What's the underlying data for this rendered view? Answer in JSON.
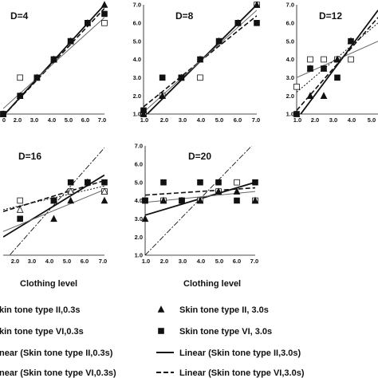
{
  "chart_data": [
    {
      "type": "scatter",
      "title": "D=4",
      "x_ticks": [
        "0",
        "2.0",
        "3.0",
        "4.0",
        "5.0",
        "6.0",
        "7.0"
      ],
      "y_ticks": [],
      "xlim": [
        1,
        7
      ],
      "ylim": [
        1,
        7
      ],
      "series": [
        {
          "key": "ii03",
          "x": [
            1,
            2,
            3,
            4,
            5,
            6,
            7
          ],
          "y": [
            1,
            3,
            3,
            4,
            5,
            6,
            6
          ]
        },
        {
          "key": "ii30",
          "x": [
            1,
            2,
            3,
            4,
            5,
            6,
            7
          ],
          "y": [
            1,
            2,
            3,
            4,
            5,
            6,
            7
          ]
        },
        {
          "key": "vi30",
          "x": [
            1,
            2,
            3,
            4,
            5,
            6,
            7
          ],
          "y": [
            1,
            2,
            3,
            4,
            5,
            6,
            6.5
          ]
        }
      ],
      "fits": [
        {
          "key": "lin_ii30",
          "y0": 0.9,
          "y1": 7.0
        },
        {
          "key": "lin_vi30",
          "y0": 0.9,
          "y1": 6.8
        },
        {
          "key": "lin_ii03",
          "y0": 1.3,
          "y1": 6.3
        }
      ]
    },
    {
      "type": "scatter",
      "title": "D=8",
      "x_ticks": [
        "1.0",
        "2.0",
        "3.0",
        "4.0",
        "5.0",
        "6.0",
        "7.0"
      ],
      "y_ticks": [
        "1.0",
        "2.0",
        "3.0",
        "4.0",
        "5.0",
        "6.0",
        "7.0"
      ],
      "xlim": [
        1,
        7
      ],
      "ylim": [
        1,
        7
      ],
      "series": [
        {
          "key": "ii03",
          "x": [
            1,
            2,
            3,
            4,
            5,
            6,
            7
          ],
          "y": [
            1,
            2,
            3,
            3,
            5,
            6,
            7
          ]
        },
        {
          "key": "ii30",
          "x": [
            1,
            2,
            3,
            4,
            5,
            6,
            7
          ],
          "y": [
            1,
            2,
            3,
            4,
            5,
            6,
            7
          ]
        },
        {
          "key": "vi30",
          "x": [
            1,
            2,
            3,
            4,
            5,
            6,
            7
          ],
          "y": [
            1.2,
            3,
            3,
            4,
            5,
            6,
            6
          ]
        }
      ],
      "fits": [
        {
          "key": "lin_ii30",
          "y0": 0.8,
          "y1": 7.0
        },
        {
          "key": "lin_vi30",
          "y0": 1.4,
          "y1": 6.4
        },
        {
          "key": "lin_ii03",
          "y0": 1.1,
          "y1": 6.7
        }
      ]
    },
    {
      "type": "scatter",
      "title": "D=12",
      "x_ticks": [
        "1.0",
        "2.0",
        "3.0",
        "4.0",
        "5.0"
      ],
      "y_ticks": [
        "1.0",
        "2.0",
        "3.0",
        "4.0",
        "5.0",
        "6.0",
        "7.0"
      ],
      "xlim": [
        1,
        7
      ],
      "ylim": [
        1,
        7
      ],
      "series": [
        {
          "key": "ii03",
          "x": [
            1,
            2,
            3,
            4,
            5
          ],
          "y": [
            2.5,
            4,
            4,
            4,
            4
          ]
        },
        {
          "key": "vi03",
          "x": [
            2,
            3,
            4,
            5
          ],
          "y": [
            3.5,
            3.5,
            4,
            5
          ]
        },
        {
          "key": "ii30",
          "x": [
            1,
            2,
            3,
            4,
            5
          ],
          "y": [
            1,
            2,
            2,
            4,
            5
          ]
        },
        {
          "key": "vi30",
          "x": [
            1,
            2,
            3,
            4,
            5
          ],
          "y": [
            1,
            3.5,
            3.5,
            3,
            5
          ]
        }
      ],
      "fits": [
        {
          "key": "lin_ii03",
          "y0": 3.0,
          "y1": 5.0
        },
        {
          "key": "lin_vi03",
          "y0": 2.2,
          "y1": 6.0
        },
        {
          "key": "lin_ii30",
          "y0": 0.7,
          "y1": 6.7
        },
        {
          "key": "lin_vi30",
          "y0": 1.2,
          "y1": 6.3
        }
      ]
    },
    {
      "type": "scatter",
      "title": "D=16",
      "x_ticks": [
        "2.0",
        "3.0",
        "4.0",
        "5.0",
        "6.0",
        "7.0"
      ],
      "y_ticks": [],
      "xlim": [
        1,
        7
      ],
      "ylim": [
        1,
        7
      ],
      "series": [
        {
          "key": "ii03",
          "x": [
            2,
            4,
            5,
            6,
            7
          ],
          "y": [
            4,
            4,
            4.5,
            5,
            4.5
          ]
        },
        {
          "key": "vi03",
          "x": [
            2,
            4,
            5,
            6,
            7
          ],
          "y": [
            3.5,
            4,
            4.5,
            5,
            4.5
          ]
        },
        {
          "key": "ii30",
          "x": [
            4,
            5,
            6,
            7
          ],
          "y": [
            3,
            4,
            5,
            4
          ]
        },
        {
          "key": "vi30",
          "x": [
            2,
            4,
            5,
            6,
            7
          ],
          "y": [
            3,
            4,
            5,
            5,
            5
          ]
        }
      ],
      "fits": [
        {
          "key": "lin_ref",
          "y0": 0.6,
          "y1": 6.9
        },
        {
          "key": "lin_ii30",
          "y0": 2.0,
          "y1": 5.4
        },
        {
          "key": "lin_vi30",
          "y0": 3.4,
          "y1": 5.1
        },
        {
          "key": "lin_ii03",
          "y0": 2.3,
          "y1": 4.6
        },
        {
          "key": "lin_vi03",
          "y0": 3.5,
          "y1": 4.8
        }
      ]
    },
    {
      "type": "scatter",
      "title": "D=20",
      "x_ticks": [
        "1.0",
        "2.0",
        "3.0",
        "4.0",
        "5.0",
        "6.0",
        "7.0"
      ],
      "y_ticks": [
        "1.0",
        "2.0",
        "3.0",
        "4.0",
        "5.0",
        "6.0",
        "7.0"
      ],
      "xlim": [
        1,
        7
      ],
      "ylim": [
        1,
        7
      ],
      "series": [
        {
          "key": "ii03",
          "x": [
            1,
            2,
            3,
            4,
            5,
            6,
            7
          ],
          "y": [
            4,
            4,
            4,
            4,
            4.5,
            5,
            4
          ]
        },
        {
          "key": "ii30",
          "x": [
            1,
            2,
            3,
            4,
            5,
            6,
            7
          ],
          "y": [
            3,
            4,
            4,
            4,
            4.5,
            4.5,
            4
          ]
        },
        {
          "key": "vi30",
          "x": [
            1,
            2,
            3,
            4,
            5,
            6,
            7
          ],
          "y": [
            4,
            5,
            4,
            5,
            5,
            4,
            5
          ]
        }
      ],
      "fits": [
        {
          "key": "lin_ref",
          "y0": 1.0,
          "y1": 7.2
        },
        {
          "key": "lin_ii30",
          "y0": 3.2,
          "y1": 5.0
        },
        {
          "key": "lin_vi30",
          "y0": 4.3,
          "y1": 4.7
        },
        {
          "key": "lin_ii03",
          "y0": 3.9,
          "y1": 4.5
        }
      ]
    }
  ],
  "axis_labels": [
    "Clothing level",
    "Clothing level"
  ],
  "legend": [
    {
      "key": "ii03",
      "symbol": "open-square",
      "label": "kin tone type II,0.3s"
    },
    {
      "key": "ii30",
      "symbol": "filled-triangle",
      "label": "Skin tone type II, 3.0s"
    },
    {
      "key": "vi03",
      "symbol": "open-triangle",
      "label": "kin tone type VI,0.3s"
    },
    {
      "key": "vi30",
      "symbol": "filled-square",
      "label": "Skin tone type VI, 3.0s"
    },
    {
      "key": "lin_ii03",
      "symbol": "thin-line",
      "label": "near (Skin tone type II,0.3s)"
    },
    {
      "key": "lin_ii30",
      "symbol": "thick-line",
      "label": "Linear (Skin tone type II,3.0s)"
    },
    {
      "key": "lin_vi03",
      "symbol": "dotted-line",
      "label": "near (Skin tone type VI,0.3s)"
    },
    {
      "key": "lin_vi30",
      "symbol": "dashed-line",
      "label": "Linear (Skin tone type VI,3.0s)"
    }
  ],
  "colors": {
    "ink": "#111111",
    "thin_line": "#666666",
    "grid": "#555555"
  }
}
